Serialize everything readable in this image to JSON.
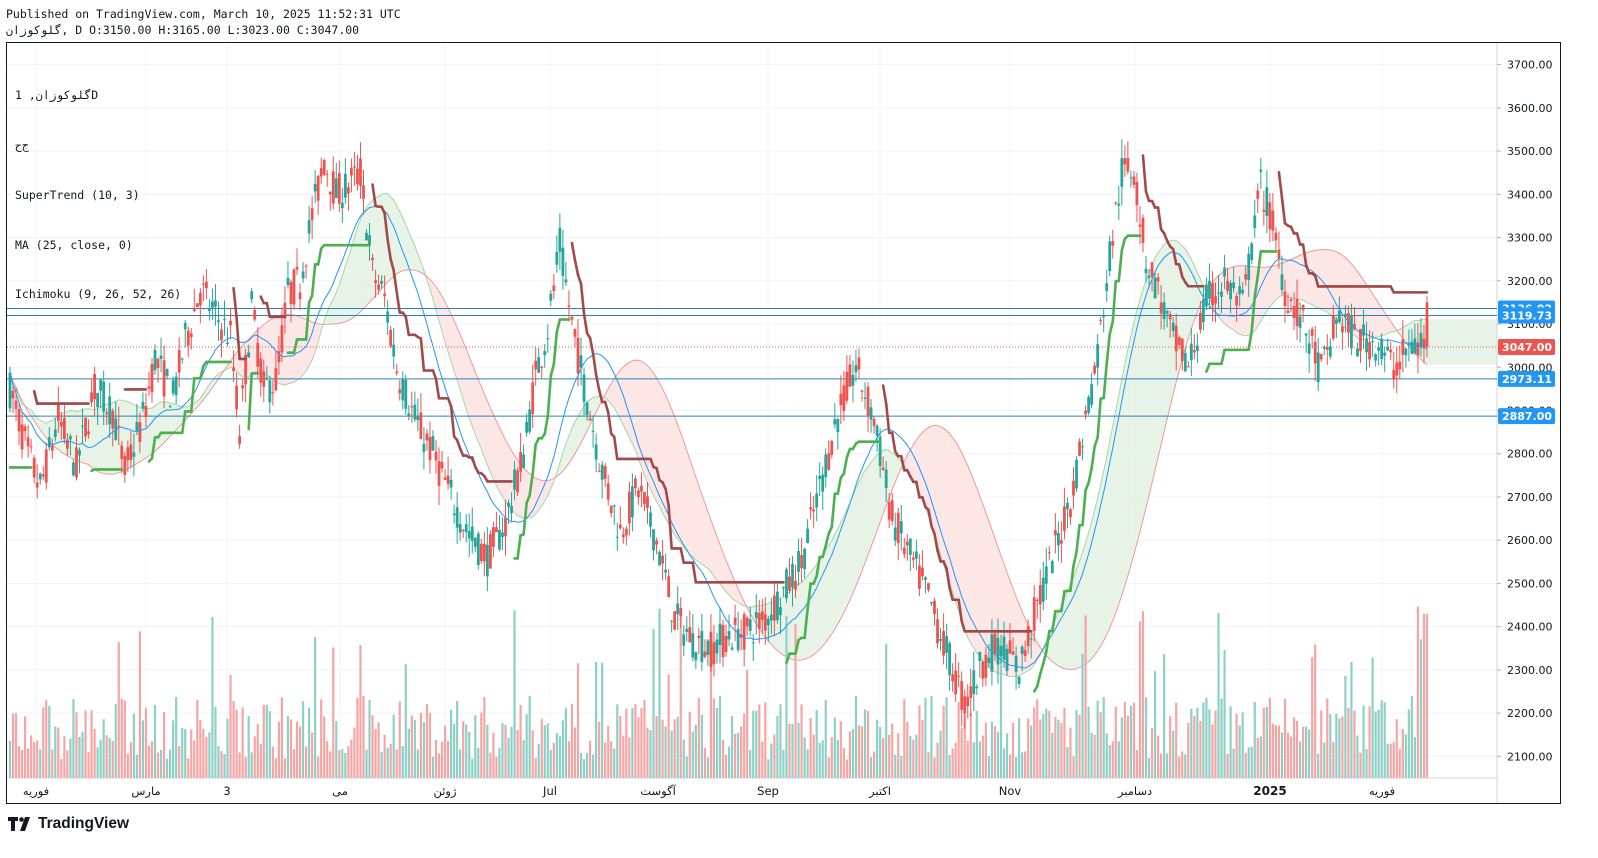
{
  "header": {
    "published_line": "Published on TradingView.com, March 10, 2025 11:52:31 UTC",
    "ohlc_line": "گلوکوزان, D O:3150.00 H:3165.00 L:3023.00 C:3047.00"
  },
  "legend": {
    "symbol_line": "گلوکوزان, 1D",
    "exchange_line": "ج‌ح",
    "indicators": [
      "SuperTrend (10, 3)",
      "MA (25, close, 0)",
      "Ichimoku (9, 26, 52, 26)"
    ]
  },
  "brand": {
    "name": "TradingView",
    "icon": "tradingview-logo-icon"
  },
  "colors": {
    "up": "#26a69a",
    "down": "#ef5350",
    "supertrend_up": "#4caf50",
    "supertrend_down": "#a14a4a",
    "ma": "#2196f3",
    "hline": "#2d82b5",
    "cloud_bull": "#e3f2e3",
    "cloud_bear": "#fde3e3",
    "price_tag": "#ef5350",
    "level_tag": "#2196f3"
  },
  "chart_data": {
    "type": "candlestick",
    "timeframe": "1D",
    "ylim": [
      2050,
      3750
    ],
    "y_ticks": [
      2100,
      2200,
      2300,
      2400,
      2500,
      2600,
      2700,
      2800,
      2900,
      3000,
      3100,
      3200,
      3300,
      3400,
      3500,
      3600,
      3700
    ],
    "y_tick_labels": [
      "2100.00",
      "2200.00",
      "2300.00",
      "2400.00",
      "2500.00",
      "2600.00",
      "2700.00",
      "2800.00",
      "2900.00",
      "3000.00",
      "3100.00",
      "3200.00",
      "3300.00",
      "3400.00",
      "3500.00",
      "3600.00",
      "3700.00"
    ],
    "x_labels": [
      "فوریه",
      "مارس",
      "3",
      "می",
      "ژوئن",
      "Jul",
      "آگوست",
      "Sep",
      "اکتبر",
      "Nov",
      "دسامبر",
      "2025",
      "فوریه"
    ],
    "last_price": {
      "value": 3047.0,
      "label": "3047.00"
    },
    "levels": [
      {
        "value": 3136.02,
        "label": "3136.02"
      },
      {
        "value": 3119.73,
        "label": "3119.73"
      },
      {
        "value": 2973.11,
        "label": "2973.11"
      },
      {
        "value": 2887.0,
        "label": "2887.00"
      }
    ],
    "last_candle": {
      "open": 3150.0,
      "high": 3165.0,
      "low": 3023.0,
      "close": 3047.0
    },
    "price_path": [
      [
        0,
        2950
      ],
      [
        6,
        2800
      ],
      [
        10,
        2720
      ],
      [
        16,
        2880
      ],
      [
        22,
        2770
      ],
      [
        28,
        2950
      ],
      [
        34,
        2900
      ],
      [
        38,
        2760
      ],
      [
        44,
        2880
      ],
      [
        48,
        3020
      ],
      [
        54,
        2930
      ],
      [
        58,
        3060
      ],
      [
        63,
        3180
      ],
      [
        68,
        3120
      ],
      [
        73,
        3070
      ],
      [
        76,
        2850
      ],
      [
        80,
        3140
      ],
      [
        84,
        2950
      ],
      [
        88,
        2970
      ],
      [
        92,
        3170
      ],
      [
        96,
        3200
      ],
      [
        100,
        3350
      ],
      [
        104,
        3480
      ],
      [
        108,
        3400
      ],
      [
        112,
        3420
      ],
      [
        116,
        3450
      ],
      [
        120,
        3220
      ],
      [
        124,
        3160
      ],
      [
        128,
        3000
      ],
      [
        134,
        2880
      ],
      [
        140,
        2800
      ],
      [
        146,
        2700
      ],
      [
        152,
        2610
      ],
      [
        158,
        2560
      ],
      [
        164,
        2640
      ],
      [
        170,
        2800
      ],
      [
        174,
        2980
      ],
      [
        178,
        3090
      ],
      [
        182,
        3280
      ],
      [
        186,
        3100
      ],
      [
        190,
        2960
      ],
      [
        196,
        2760
      ],
      [
        202,
        2620
      ],
      [
        208,
        2720
      ],
      [
        214,
        2600
      ],
      [
        220,
        2420
      ],
      [
        226,
        2370
      ],
      [
        232,
        2350
      ],
      [
        238,
        2380
      ],
      [
        244,
        2390
      ],
      [
        250,
        2420
      ],
      [
        256,
        2480
      ],
      [
        262,
        2550
      ],
      [
        268,
        2720
      ],
      [
        274,
        2890
      ],
      [
        280,
        3000
      ],
      [
        286,
        2880
      ],
      [
        292,
        2650
      ],
      [
        298,
        2560
      ],
      [
        304,
        2470
      ],
      [
        310,
        2340
      ],
      [
        316,
        2220
      ],
      [
        322,
        2320
      ],
      [
        328,
        2360
      ],
      [
        334,
        2300
      ],
      [
        340,
        2450
      ],
      [
        346,
        2580
      ],
      [
        352,
        2720
      ],
      [
        356,
        2880
      ],
      [
        360,
        3030
      ],
      [
        364,
        3260
      ],
      [
        368,
        3450
      ],
      [
        372,
        3460
      ],
      [
        376,
        3250
      ],
      [
        380,
        3180
      ],
      [
        384,
        3080
      ],
      [
        390,
        3000
      ],
      [
        396,
        3150
      ],
      [
        402,
        3200
      ],
      [
        408,
        3140
      ],
      [
        414,
        3420
      ],
      [
        418,
        3330
      ],
      [
        422,
        3180
      ],
      [
        428,
        3100
      ],
      [
        434,
        2990
      ],
      [
        440,
        3120
      ],
      [
        446,
        3060
      ],
      [
        452,
        3060
      ],
      [
        458,
        3000
      ],
      [
        464,
        3050
      ]
    ],
    "volume_ylim": [
      0,
      410
    ]
  }
}
